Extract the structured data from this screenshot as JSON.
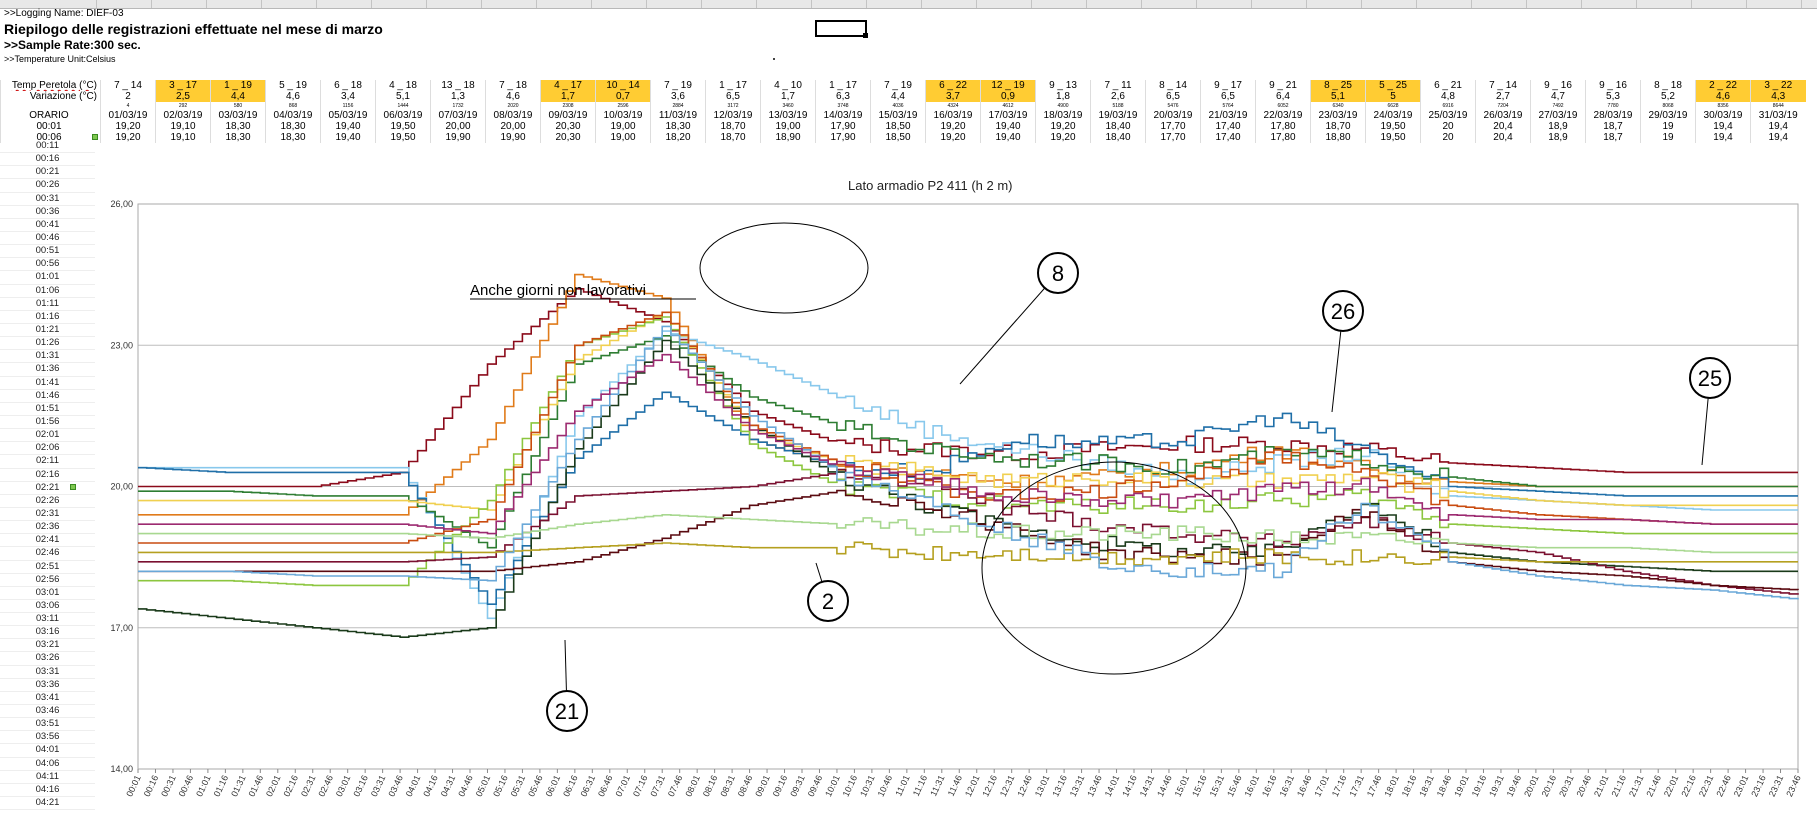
{
  "header_info": {
    "logging_name": ">>Logging Name: DIEF-03",
    "title": "Riepilogo delle registrazioni effettuate nel mese di marzo",
    "sample_rate": ">>Sample Rate:300 sec.",
    "temp_unit": ">>Temperature Unit:Celsius"
  },
  "grid": {
    "row_labels": {
      "temp": "Temp Peretola (°C)",
      "var": "Variazione (°C)",
      "orario": "ORARIO"
    },
    "temp": [
      "7 _ 14",
      "3 _ 17",
      "1 _ 19",
      "5 _ 19",
      "6 _ 18",
      "4 _ 18",
      "13 _ 18",
      "7 _ 18",
      "4 _ 17",
      "10 _ 14",
      "7 _ 19",
      "1 _ 17",
      "4 _ 10",
      "1 _ 17",
      "7 _ 19",
      "6 _ 22",
      "12 _ 19",
      "9 _ 13",
      "7 _ 11",
      "8 _ 14",
      "9 _ 17",
      "9 _ 21",
      "8 _ 25",
      "5 _ 25",
      "6 _ 21",
      "7 _ 14",
      "9 _ 16",
      "9 _ 16",
      "8 _ 18",
      "2 _ 22",
      "3 _ 22"
    ],
    "var": [
      "2",
      "2,5",
      "4,4",
      "4,6",
      "3,4",
      "5,1",
      "1,3",
      "4,6",
      "1,7",
      "0,7",
      "3,6",
      "6,5",
      "1,7",
      "6,3",
      "4,4",
      "3,7",
      "0,9",
      "1,8",
      "2,6",
      "6,5",
      "6,5",
      "6,4",
      "5,1",
      "5",
      "4,8",
      "2,7",
      "4,7",
      "5,3",
      "5,2",
      "4,6",
      "4,3"
    ],
    "tiny": [
      "4",
      "292",
      "580",
      "868",
      "1156",
      "1444",
      "1732",
      "2020",
      "2308",
      "2596",
      "2884",
      "3172",
      "3460",
      "3748",
      "4036",
      "4324",
      "4612",
      "4900",
      "5188",
      "5476",
      "5764",
      "6052",
      "6340",
      "6628",
      "6916",
      "7204",
      "7492",
      "7780",
      "8068",
      "8356",
      "8644"
    ],
    "highlight": [
      1,
      2,
      8,
      9,
      15,
      16,
      22,
      23,
      29,
      30
    ],
    "dates": [
      "01/03/19",
      "02/03/19",
      "03/03/19",
      "04/03/19",
      "05/03/19",
      "06/03/19",
      "07/03/19",
      "08/03/19",
      "09/03/19",
      "10/03/19",
      "11/03/19",
      "12/03/19",
      "13/03/19",
      "14/03/19",
      "15/03/19",
      "16/03/19",
      "17/03/19",
      "18/03/19",
      "19/03/19",
      "20/03/19",
      "21/03/19",
      "22/03/19",
      "23/03/19",
      "24/03/19",
      "25/03/19",
      "26/03/19",
      "27/03/19",
      "28/03/19",
      "29/03/19",
      "30/03/19",
      "31/03/19"
    ],
    "row_0001_label": "00:01",
    "row_0001": [
      "19,20",
      "19,10",
      "18,30",
      "18,30",
      "19,40",
      "19,50",
      "20,00",
      "20,00",
      "20,30",
      "19,00",
      "18,30",
      "18,70",
      "19,00",
      "17,90",
      "18,50",
      "19,20",
      "19,40",
      "19,20",
      "18,40",
      "17,70",
      "17,40",
      "17,80",
      "18,70",
      "19,50",
      "20",
      "20,4",
      "18,9",
      "18,7",
      "19",
      "19,4",
      "19,4"
    ],
    "row_0006_label": "00:06",
    "row_0006": [
      "19,20",
      "19,10",
      "18,30",
      "18,30",
      "19,40",
      "19,50",
      "19,90",
      "19,90",
      "20,30",
      "19,00",
      "18,20",
      "18,70",
      "18,90",
      "17,90",
      "18,50",
      "19,20",
      "19,40",
      "19,20",
      "18,40",
      "17,70",
      "17,40",
      "17,80",
      "18,80",
      "19,50",
      "20",
      "20,4",
      "18,9",
      "18,7",
      "19",
      "19,4",
      "19,4"
    ]
  },
  "time_column": [
    "00:11",
    "00:16",
    "00:21",
    "00:26",
    "00:31",
    "00:36",
    "00:41",
    "00:46",
    "00:51",
    "00:56",
    "01:01",
    "01:06",
    "01:11",
    "01:16",
    "01:21",
    "01:26",
    "01:31",
    "01:36",
    "01:41",
    "01:46",
    "01:51",
    "01:56",
    "02:01",
    "02:06",
    "02:11",
    "02:16",
    "02:21",
    "02:26",
    "02:31",
    "02:36",
    "02:41",
    "02:46",
    "02:51",
    "02:56",
    "03:01",
    "03:06",
    "03:11",
    "03:16",
    "03:21",
    "03:26",
    "03:31",
    "03:36",
    "03:41",
    "03:46",
    "03:51",
    "03:56",
    "04:01",
    "04:06",
    "04:11",
    "04:16",
    "04:21"
  ],
  "chart_data": {
    "type": "line",
    "title": "Lato armadio P2 411 (h 2 m)",
    "ylim": [
      14,
      26
    ],
    "yticks": [
      "14,00",
      "17,00",
      "20,00",
      "23,00",
      "26,00"
    ],
    "xticks": [
      "00:01",
      "00:16",
      "00:31",
      "00:46",
      "01:01",
      "01:16",
      "01:31",
      "01:46",
      "02:01",
      "02:16",
      "02:31",
      "02:46",
      "03:01",
      "03:16",
      "03:31",
      "03:46",
      "04:01",
      "04:16",
      "04:31",
      "04:46",
      "05:01",
      "05:16",
      "05:31",
      "05:46",
      "06:01",
      "06:16",
      "06:31",
      "06:46",
      "07:01",
      "07:16",
      "07:31",
      "07:46",
      "08:01",
      "08:16",
      "08:31",
      "08:46",
      "09:01",
      "09:16",
      "09:31",
      "09:46",
      "10:01",
      "10:16",
      "10:31",
      "10:46",
      "11:01",
      "11:16",
      "11:31",
      "11:46",
      "12:01",
      "12:16",
      "12:31",
      "12:46",
      "13:01",
      "13:16",
      "13:31",
      "13:46",
      "14:01",
      "14:16",
      "14:31",
      "14:46",
      "15:01",
      "15:16",
      "15:31",
      "15:46",
      "16:01",
      "16:16",
      "16:31",
      "16:46",
      "17:01",
      "17:16",
      "17:31",
      "17:46",
      "18:01",
      "18:16",
      "18:31",
      "18:46",
      "19:01",
      "19:16",
      "19:31",
      "19:46",
      "20:01",
      "20:16",
      "20:31",
      "20:46",
      "21:01",
      "21:16",
      "21:31",
      "21:46",
      "22:01",
      "22:16",
      "22:31",
      "22:46",
      "23:01",
      "23:16",
      "23:31",
      "23:46"
    ],
    "grid": true,
    "annotations": {
      "non_working": "Anche giorni non lavorativi",
      "labels": [
        "8",
        "26",
        "25",
        "2",
        "21"
      ]
    },
    "series": [
      {
        "color": "#8b0a1a",
        "values": [
          20.0,
          20.0,
          20.0,
          20.3,
          22.6,
          24.2,
          23.5,
          21.6,
          20.9,
          20.8,
          20.7,
          20.8,
          20.9,
          20.9,
          20.8,
          20.5,
          20.4,
          20.3,
          20.3,
          20.3
        ]
      },
      {
        "color": "#e07b1a",
        "values": [
          19.4,
          19.4,
          19.4,
          19.4,
          21.0,
          24.5,
          24.0,
          21.0,
          20.4,
          20.3,
          20.1,
          20.2,
          20.4,
          20.8,
          20.4,
          20.1,
          20.0,
          20.0,
          20.0,
          20.0
        ]
      },
      {
        "color": "#88c8ec",
        "values": [
          20.4,
          20.4,
          20.4,
          20.4,
          17.2,
          21.5,
          23.3,
          22.7,
          21.9,
          21.2,
          20.8,
          20.5,
          20.2,
          20.5,
          20.7,
          19.8,
          19.7,
          19.6,
          19.5,
          19.5
        ]
      },
      {
        "color": "#1f6fa8",
        "values": [
          20.4,
          20.3,
          20.3,
          20.3,
          17.5,
          20.6,
          22.0,
          21.0,
          20.4,
          20.3,
          21.0,
          20.9,
          21.0,
          21.5,
          20.8,
          20.0,
          19.9,
          19.8,
          19.8,
          19.8
        ]
      },
      {
        "color": "#2e7d32",
        "values": [
          19.9,
          19.9,
          19.8,
          19.8,
          18.7,
          22.6,
          23.2,
          21.9,
          21.3,
          20.8,
          20.6,
          20.5,
          20.4,
          20.7,
          20.6,
          20.2,
          20.0,
          20.0,
          20.0,
          20.0
        ]
      },
      {
        "color": "#f0d050",
        "values": [
          19.7,
          19.7,
          19.7,
          19.7,
          19.5,
          22.7,
          23.7,
          21.2,
          20.5,
          20.3,
          20.1,
          20.2,
          20.1,
          20.1,
          20.2,
          19.9,
          19.7,
          19.6,
          19.6,
          19.6
        ]
      },
      {
        "color": "#8cc63f",
        "values": [
          18.0,
          18.0,
          17.9,
          17.9,
          19.7,
          23.0,
          23.6,
          20.9,
          20.0,
          19.8,
          19.6,
          19.6,
          19.6,
          19.7,
          19.8,
          19.2,
          19.1,
          19.0,
          19.0,
          19.0
        ]
      },
      {
        "color": "#1a3a1a",
        "values": [
          17.4,
          17.2,
          17.0,
          16.8,
          17.0,
          20.8,
          23.1,
          21.3,
          20.2,
          19.6,
          19.1,
          18.8,
          18.6,
          18.6,
          19.7,
          18.6,
          18.4,
          18.3,
          18.2,
          18.2
        ]
      },
      {
        "color": "#7a1030",
        "values": [
          18.4,
          18.4,
          18.4,
          18.4,
          18.5,
          19.8,
          19.9,
          20.0,
          20.3,
          20.1,
          19.5,
          19.2,
          19.0,
          18.8,
          19.3,
          18.8,
          18.6,
          18.2,
          17.9,
          17.7
        ]
      },
      {
        "color": "#5a0a10",
        "values": [
          18.2,
          18.2,
          18.2,
          18.2,
          18.2,
          18.4,
          18.9,
          19.6,
          19.9,
          19.6,
          19.1,
          18.6,
          18.5,
          18.5,
          19.5,
          18.4,
          18.2,
          18.1,
          17.9,
          17.8
        ]
      },
      {
        "color": "#c94c10",
        "values": [
          18.8,
          18.8,
          18.8,
          18.8,
          19.3,
          23.0,
          23.7,
          21.3,
          20.5,
          20.0,
          19.8,
          19.9,
          20.2,
          20.6,
          20.4,
          19.6,
          19.4,
          19.3,
          19.2,
          19.2
        ]
      },
      {
        "color": "#a8d890",
        "values": [
          19.0,
          19.0,
          19.0,
          19.0,
          18.9,
          19.2,
          19.4,
          19.3,
          19.2,
          19.1,
          19.0,
          19.0,
          19.0,
          18.9,
          18.9,
          18.8,
          18.7,
          18.7,
          18.6,
          18.6
        ]
      },
      {
        "color": "#b5a020",
        "values": [
          18.6,
          18.6,
          18.6,
          18.6,
          18.6,
          18.7,
          18.8,
          18.7,
          18.7,
          18.6,
          18.6,
          18.5,
          18.5,
          18.5,
          18.5,
          18.5,
          18.4,
          18.4,
          18.4,
          18.4
        ]
      },
      {
        "color": "#6aa8d8",
        "values": [
          18.2,
          18.2,
          18.1,
          18.1,
          18.0,
          21.0,
          23.4,
          21.5,
          20.3,
          19.7,
          19.0,
          18.4,
          18.2,
          18.2,
          19.6,
          18.4,
          18.1,
          17.9,
          17.8,
          17.6
        ]
      },
      {
        "color": "#9c2a70",
        "values": [
          19.2,
          19.2,
          19.2,
          19.2,
          19.0,
          21.6,
          22.8,
          21.2,
          20.4,
          20.1,
          19.8,
          19.7,
          19.7,
          19.9,
          20.0,
          19.4,
          19.3,
          19.3,
          19.2,
          19.2
        ]
      }
    ]
  }
}
